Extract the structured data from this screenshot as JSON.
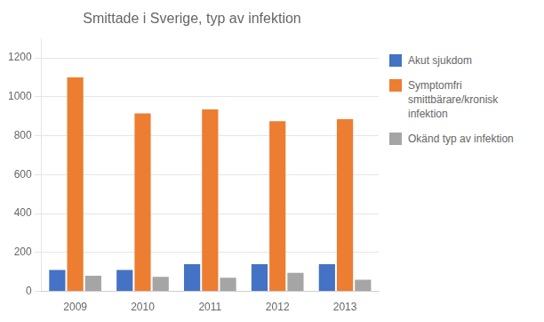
{
  "chart_data": {
    "type": "bar",
    "title": "Smittade i Sverige, typ av infektion",
    "categories": [
      "2009",
      "2010",
      "2011",
      "2012",
      "2013"
    ],
    "series": [
      {
        "name": "Akut sjukdom",
        "color": "#4472c4",
        "values": [
          110,
          110,
          140,
          140,
          140
        ]
      },
      {
        "name": "Symptomfri\nsmittbärare/kronisk infektion",
        "color": "#ed7d31",
        "values": [
          1100,
          915,
          935,
          875,
          885
        ]
      },
      {
        "name": "Okänd typ av infektion",
        "color": "#a5a5a5",
        "values": [
          80,
          75,
          70,
          95,
          60
        ]
      }
    ],
    "ylim": [
      0,
      1300
    ],
    "yticks": [
      0,
      200,
      400,
      600,
      800,
      1000,
      1200
    ],
    "grid": true,
    "legend": "right"
  }
}
